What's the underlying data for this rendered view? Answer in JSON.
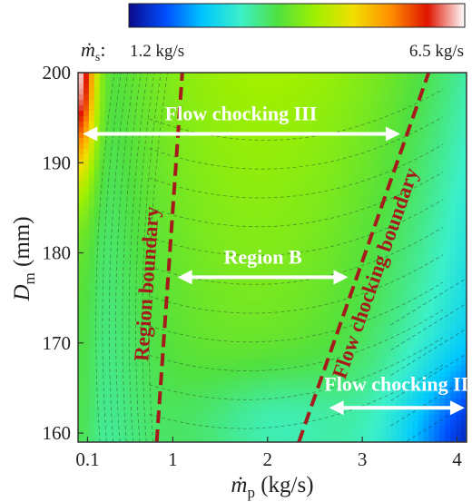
{
  "chart_data": {
    "type": "heatmap",
    "xlabel_symbol": "ṁ",
    "xlabel_sub": "p",
    "xlabel_unit": " (kg/s)",
    "ylabel_symbol": "D",
    "ylabel_sub": "m",
    "ylabel_unit": " (mm)",
    "xlim": [
      0,
      4.1
    ],
    "ylim": [
      159,
      200
    ],
    "x_ticks": [
      {
        "value": 0.1,
        "label": "0.1"
      },
      {
        "value": 1,
        "label": "1"
      },
      {
        "value": 2,
        "label": "2"
      },
      {
        "value": 3,
        "label": "3"
      },
      {
        "value": 4,
        "label": "4"
      }
    ],
    "y_ticks": [
      {
        "value": 160,
        "label": "160"
      },
      {
        "value": 170,
        "label": "170"
      },
      {
        "value": 180,
        "label": "180"
      },
      {
        "value": 190,
        "label": "190"
      },
      {
        "value": 200,
        "label": "200"
      }
    ],
    "colorbar": {
      "symbol": "ṁ",
      "sub": "s",
      "suffix": ":",
      "min_label": "1.2 kg/s",
      "max_label": "6.5 kg/s",
      "min": 1.2,
      "max": 6.5,
      "colors": [
        "#0a0a8c",
        "#0050ff",
        "#00c8ff",
        "#3cf0c8",
        "#50e040",
        "#a0f000",
        "#f0e000",
        "#ff9000",
        "#e01400",
        "#ffffff"
      ]
    },
    "boundaries": [
      {
        "id": "region",
        "label": "Region boundary",
        "color": "#a51b1b",
        "x0": 0.83,
        "y0": 159,
        "x1": 1.1,
        "y1": 200
      },
      {
        "id": "flow",
        "label": "Flow chocking boundary",
        "color": "#a51b1b",
        "x0": 2.33,
        "y0": 159,
        "x1": 3.7,
        "y1": 200
      }
    ],
    "annotations": [
      {
        "id": "fc3",
        "label": "Flow chocking III",
        "x0": 0.05,
        "x1": 3.4,
        "y": 193.2,
        "text_x": 1.72,
        "text_y": 194.7
      },
      {
        "id": "regb",
        "label": "Region B",
        "x0": 1.05,
        "x1": 2.85,
        "y": 177.3,
        "text_x": 1.95,
        "text_y": 178.8
      },
      {
        "id": "fc2",
        "label": "Flow chocking II",
        "x0": 2.65,
        "x1": 4.08,
        "y": 162.8,
        "text_x": 3.36,
        "text_y": 164.7
      }
    ]
  }
}
